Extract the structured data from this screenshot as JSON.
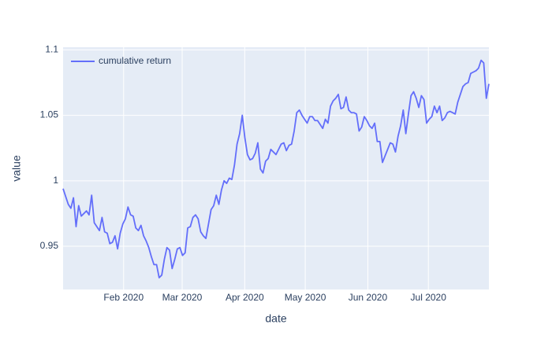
{
  "chart_data": {
    "type": "line",
    "xlabel": "date",
    "ylabel": "value",
    "xlim": [
      "2020-01-02",
      "2020-07-31"
    ],
    "xticks": [
      {
        "value": "2020-02",
        "label": "Feb 2020"
      },
      {
        "value": "2020-03",
        "label": "Mar 2020"
      },
      {
        "value": "2020-04",
        "label": "Apr 2020"
      },
      {
        "value": "2020-05",
        "label": "May 2020"
      },
      {
        "value": "2020-06",
        "label": "Jun 2020"
      },
      {
        "value": "2020-07",
        "label": "Jul 2020"
      }
    ],
    "ylim": [
      0.917,
      1.102
    ],
    "yticks": [
      0.95,
      1,
      1.05,
      1.1
    ],
    "grid": true,
    "legend": "top-left",
    "series": [
      {
        "name": "cumulative return",
        "color": "#636efa",
        "values": [
          0.994,
          0.988,
          0.982,
          0.979,
          0.987,
          0.965,
          0.981,
          0.973,
          0.975,
          0.977,
          0.974,
          0.989,
          0.968,
          0.965,
          0.962,
          0.972,
          0.961,
          0.96,
          0.952,
          0.953,
          0.958,
          0.948,
          0.96,
          0.967,
          0.971,
          0.98,
          0.974,
          0.973,
          0.964,
          0.962,
          0.966,
          0.958,
          0.954,
          0.949,
          0.942,
          0.936,
          0.936,
          0.926,
          0.928,
          0.94,
          0.949,
          0.947,
          0.933,
          0.94,
          0.948,
          0.949,
          0.943,
          0.945,
          0.964,
          0.965,
          0.972,
          0.974,
          0.971,
          0.961,
          0.958,
          0.956,
          0.967,
          0.978,
          0.981,
          0.989,
          0.982,
          0.993,
          1.0,
          0.998,
          1.002,
          1.001,
          1.012,
          1.028,
          1.036,
          1.05,
          1.033,
          1.02,
          1.016,
          1.017,
          1.021,
          1.029,
          1.009,
          1.006,
          1.015,
          1.017,
          1.024,
          1.022,
          1.02,
          1.024,
          1.028,
          1.029,
          1.023,
          1.027,
          1.028,
          1.038,
          1.052,
          1.054,
          1.05,
          1.047,
          1.044,
          1.049,
          1.049,
          1.046,
          1.046,
          1.043,
          1.04,
          1.047,
          1.044,
          1.057,
          1.061,
          1.063,
          1.066,
          1.055,
          1.056,
          1.064,
          1.054,
          1.052,
          1.052,
          1.051,
          1.038,
          1.041,
          1.049,
          1.046,
          1.042,
          1.04,
          1.044,
          1.03,
          1.03,
          1.014,
          1.019,
          1.024,
          1.029,
          1.028,
          1.022,
          1.034,
          1.042,
          1.054,
          1.036,
          1.051,
          1.065,
          1.068,
          1.063,
          1.056,
          1.065,
          1.062,
          1.044,
          1.047,
          1.049,
          1.057,
          1.052,
          1.057,
          1.046,
          1.048,
          1.052,
          1.053,
          1.052,
          1.051,
          1.06,
          1.066,
          1.072,
          1.074,
          1.075,
          1.082,
          1.083,
          1.084,
          1.086,
          1.092,
          1.09,
          1.063,
          1.074
        ]
      }
    ]
  }
}
